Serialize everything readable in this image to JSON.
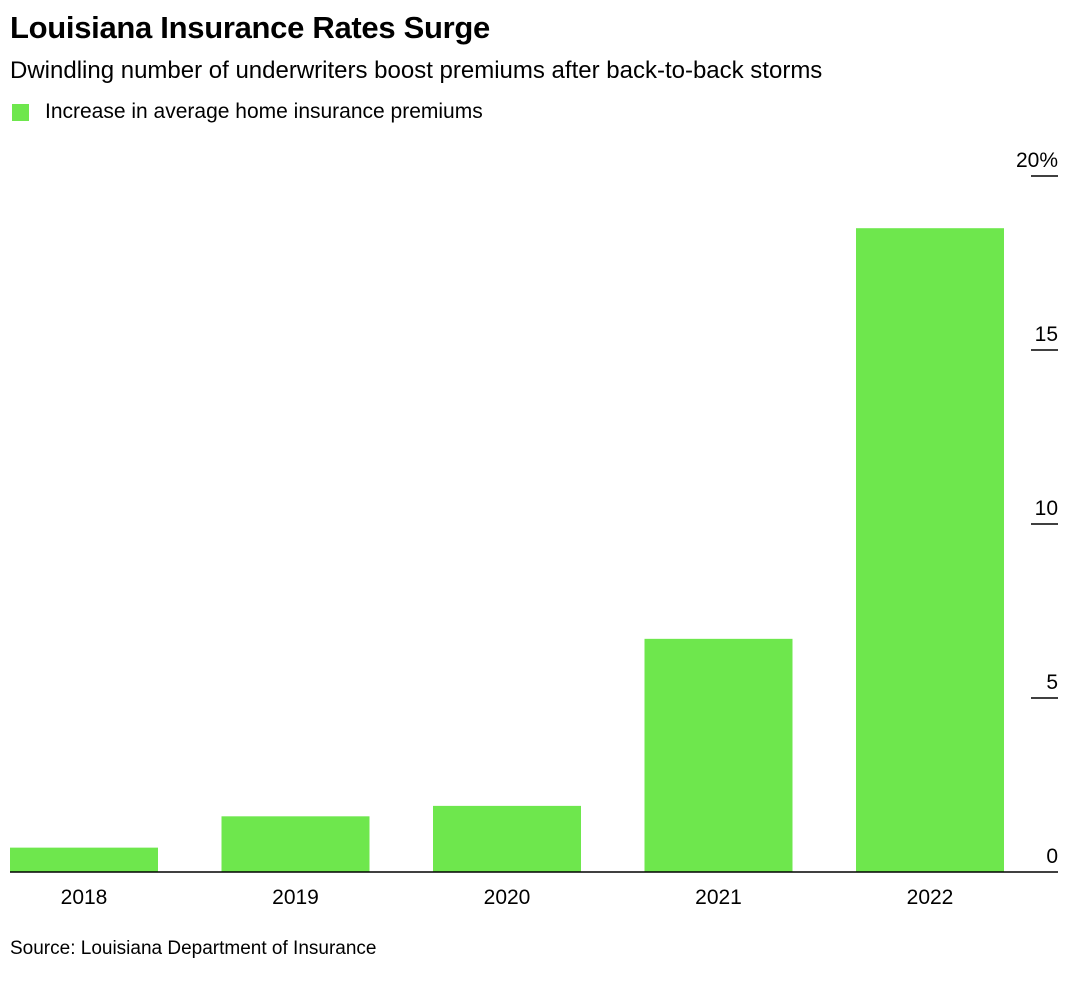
{
  "chart_data": {
    "type": "bar",
    "title": "Louisiana Insurance Rates Surge",
    "subtitle": "Dwindling number of underwriters boost premiums after back-to-back storms",
    "legend": {
      "placement": "top-left",
      "entries": [
        "Increase in average home insurance premiums"
      ]
    },
    "categories": [
      "2018",
      "2019",
      "2020",
      "2021",
      "2022"
    ],
    "series": [
      {
        "name": "Increase in average home insurance premiums",
        "values": [
          0.7,
          1.6,
          1.9,
          6.7,
          18.5
        ],
        "color": "#6ee74d"
      }
    ],
    "y_axis": {
      "position": "right",
      "ylim": [
        0,
        20
      ],
      "ticks": [
        0,
        5,
        10,
        15,
        20
      ],
      "tick_labels": [
        "0",
        "5",
        "10",
        "15",
        "20%"
      ]
    },
    "grid": false,
    "source": "Source: Louisiana Department of Insurance"
  },
  "colors": {
    "bar": "#6ee74d",
    "axis": "#000000",
    "text": "#000000"
  }
}
